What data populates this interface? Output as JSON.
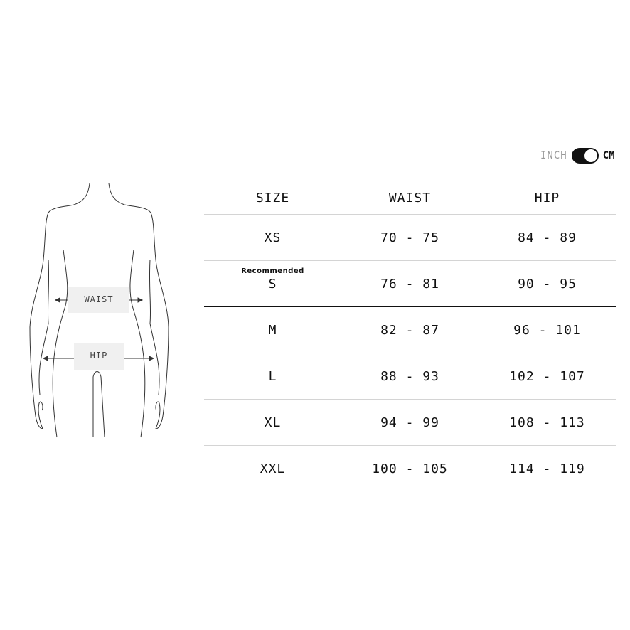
{
  "units": {
    "inch_label": "INCH",
    "cm_label": "CM",
    "selected": "CM"
  },
  "figure": {
    "waist_label": "WAIST",
    "hip_label": "HIP"
  },
  "table": {
    "headers": [
      "SIZE",
      "WAIST",
      "HIP"
    ],
    "recommended_label": "Recommended",
    "rows": [
      {
        "size": "XS",
        "waist": "70 - 75",
        "hip": "84 - 89"
      },
      {
        "size": "S",
        "waist": "76 - 81",
        "hip": "90 - 95",
        "recommended": true
      },
      {
        "size": "M",
        "waist": "82 - 87",
        "hip": "96 - 101"
      },
      {
        "size": "L",
        "waist": "88 - 93",
        "hip": "102 - 107"
      },
      {
        "size": "XL",
        "waist": "94 - 99",
        "hip": "108 - 113"
      },
      {
        "size": "XXL",
        "waist": "100 - 105",
        "hip": "114 - 119"
      }
    ]
  }
}
